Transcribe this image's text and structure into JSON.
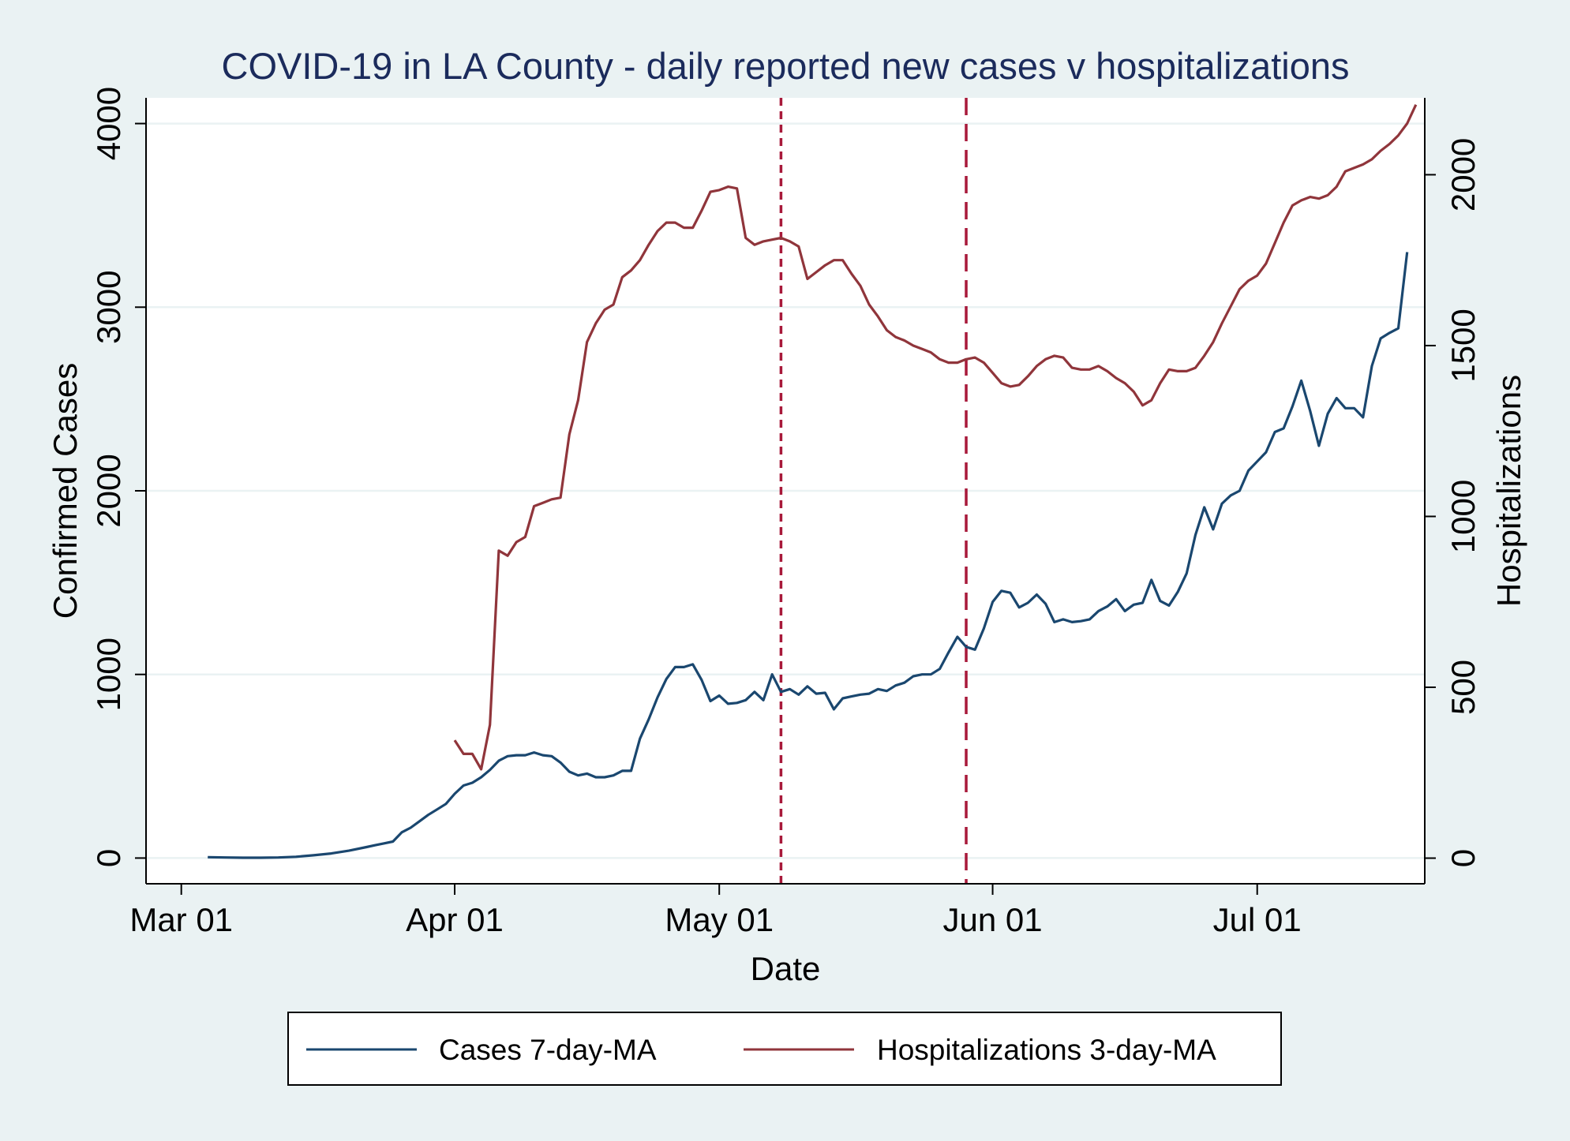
{
  "chart_data": {
    "type": "line",
    "title": "COVID-19 in LA County - daily reported new cases v hospitalizations",
    "xlabel": "Date",
    "ylabel": "Confirmed Cases",
    "y2label": "Hospitalizations",
    "x_ticks": [
      {
        "date": "2020-03-01",
        "label": "Mar 01"
      },
      {
        "date": "2020-04-01",
        "label": "Apr 01"
      },
      {
        "date": "2020-05-01",
        "label": "May 01"
      },
      {
        "date": "2020-06-01",
        "label": "Jun 01"
      },
      {
        "date": "2020-07-01",
        "label": "Jul 01"
      }
    ],
    "xlim": [
      "2020-02-26",
      "2020-07-20"
    ],
    "ylim": [
      -140,
      4140
    ],
    "y_ticks": [
      0,
      1000,
      2000,
      3000,
      4000
    ],
    "y2lim": [
      -75,
      2225
    ],
    "y2_ticks": [
      0,
      500,
      1000,
      1500,
      2000
    ],
    "grid": "horizontal",
    "legend_position": "bottom",
    "reference_lines": [
      {
        "date": "2020-05-08",
        "style": "dotted",
        "color": "#a8193a"
      },
      {
        "date": "2020-05-29",
        "style": "dashed",
        "color": "#a8193a"
      }
    ],
    "series": [
      {
        "name": "Cases 7-day-MA",
        "axis": "left",
        "color": "#1a476f",
        "points": [
          [
            "2020-03-04",
            5
          ],
          [
            "2020-03-06",
            3
          ],
          [
            "2020-03-08",
            2
          ],
          [
            "2020-03-10",
            2
          ],
          [
            "2020-03-12",
            3
          ],
          [
            "2020-03-14",
            7
          ],
          [
            "2020-03-16",
            15
          ],
          [
            "2020-03-18",
            25
          ],
          [
            "2020-03-20",
            40
          ],
          [
            "2020-03-22",
            60
          ],
          [
            "2020-03-23",
            70
          ],
          [
            "2020-03-24",
            80
          ],
          [
            "2020-03-25",
            90
          ],
          [
            "2020-03-26",
            140
          ],
          [
            "2020-03-27",
            165
          ],
          [
            "2020-03-28",
            200
          ],
          [
            "2020-03-29",
            235
          ],
          [
            "2020-03-30",
            265
          ],
          [
            "2020-03-31",
            295
          ],
          [
            "2020-04-01",
            350
          ],
          [
            "2020-04-02",
            395
          ],
          [
            "2020-04-03",
            410
          ],
          [
            "2020-04-04",
            440
          ],
          [
            "2020-04-05",
            480
          ],
          [
            "2020-04-06",
            530
          ],
          [
            "2020-04-07",
            555
          ],
          [
            "2020-04-08",
            560
          ],
          [
            "2020-04-09",
            560
          ],
          [
            "2020-04-10",
            575
          ],
          [
            "2020-04-11",
            560
          ],
          [
            "2020-04-12",
            555
          ],
          [
            "2020-04-13",
            520
          ],
          [
            "2020-04-14",
            470
          ],
          [
            "2020-04-15",
            450
          ],
          [
            "2020-04-16",
            460
          ],
          [
            "2020-04-17",
            440
          ],
          [
            "2020-04-18",
            440
          ],
          [
            "2020-04-19",
            450
          ],
          [
            "2020-04-20",
            475
          ],
          [
            "2020-04-21",
            475
          ],
          [
            "2020-04-22",
            650
          ],
          [
            "2020-04-23",
            755
          ],
          [
            "2020-04-24",
            875
          ],
          [
            "2020-04-25",
            975
          ],
          [
            "2020-04-26",
            1040
          ],
          [
            "2020-04-27",
            1040
          ],
          [
            "2020-04-28",
            1055
          ],
          [
            "2020-04-29",
            970
          ],
          [
            "2020-04-30",
            855
          ],
          [
            "2020-05-01",
            885
          ],
          [
            "2020-05-02",
            840
          ],
          [
            "2020-05-03",
            845
          ],
          [
            "2020-05-04",
            860
          ],
          [
            "2020-05-05",
            905
          ],
          [
            "2020-05-06",
            860
          ],
          [
            "2020-05-07",
            1000
          ],
          [
            "2020-05-08",
            905
          ],
          [
            "2020-05-09",
            920
          ],
          [
            "2020-05-10",
            890
          ],
          [
            "2020-05-11",
            935
          ],
          [
            "2020-05-12",
            895
          ],
          [
            "2020-05-13",
            900
          ],
          [
            "2020-05-14",
            810
          ],
          [
            "2020-05-15",
            870
          ],
          [
            "2020-05-16",
            880
          ],
          [
            "2020-05-17",
            890
          ],
          [
            "2020-05-18",
            895
          ],
          [
            "2020-05-19",
            920
          ],
          [
            "2020-05-20",
            910
          ],
          [
            "2020-05-21",
            940
          ],
          [
            "2020-05-22",
            955
          ],
          [
            "2020-05-23",
            990
          ],
          [
            "2020-05-24",
            1000
          ],
          [
            "2020-05-25",
            1000
          ],
          [
            "2020-05-26",
            1030
          ],
          [
            "2020-05-27",
            1120
          ],
          [
            "2020-05-28",
            1205
          ],
          [
            "2020-05-29",
            1150
          ],
          [
            "2020-05-30",
            1135
          ],
          [
            "2020-05-31",
            1250
          ],
          [
            "2020-06-01",
            1395
          ],
          [
            "2020-06-02",
            1455
          ],
          [
            "2020-06-03",
            1445
          ],
          [
            "2020-06-04",
            1365
          ],
          [
            "2020-06-05",
            1390
          ],
          [
            "2020-06-06",
            1435
          ],
          [
            "2020-06-07",
            1385
          ],
          [
            "2020-06-08",
            1285
          ],
          [
            "2020-06-09",
            1300
          ],
          [
            "2020-06-10",
            1285
          ],
          [
            "2020-06-11",
            1290
          ],
          [
            "2020-06-12",
            1300
          ],
          [
            "2020-06-13",
            1345
          ],
          [
            "2020-06-14",
            1370
          ],
          [
            "2020-06-15",
            1410
          ],
          [
            "2020-06-16",
            1345
          ],
          [
            "2020-06-17",
            1380
          ],
          [
            "2020-06-18",
            1390
          ],
          [
            "2020-06-19",
            1515
          ],
          [
            "2020-06-20",
            1400
          ],
          [
            "2020-06-21",
            1375
          ],
          [
            "2020-06-22",
            1450
          ],
          [
            "2020-06-23",
            1550
          ],
          [
            "2020-06-24",
            1760
          ],
          [
            "2020-06-25",
            1910
          ],
          [
            "2020-06-26",
            1790
          ],
          [
            "2020-06-27",
            1930
          ],
          [
            "2020-06-28",
            1975
          ],
          [
            "2020-06-29",
            2000
          ],
          [
            "2020-06-30",
            2110
          ],
          [
            "2020-07-01",
            2160
          ],
          [
            "2020-07-02",
            2210
          ],
          [
            "2020-07-03",
            2320
          ],
          [
            "2020-07-04",
            2340
          ],
          [
            "2020-07-05",
            2460
          ],
          [
            "2020-07-06",
            2600
          ],
          [
            "2020-07-07",
            2435
          ],
          [
            "2020-07-08",
            2245
          ],
          [
            "2020-07-09",
            2420
          ],
          [
            "2020-07-10",
            2505
          ],
          [
            "2020-07-11",
            2450
          ],
          [
            "2020-07-12",
            2450
          ],
          [
            "2020-07-13",
            2400
          ],
          [
            "2020-07-14",
            2680
          ],
          [
            "2020-07-15",
            2830
          ],
          [
            "2020-07-16",
            2860
          ],
          [
            "2020-07-17",
            2885
          ],
          [
            "2020-07-18",
            3300
          ]
        ]
      },
      {
        "name": "Hospitalizations 3-day-MA",
        "axis": "right",
        "color": "#90353b",
        "points": [
          [
            "2020-04-01",
            345
          ],
          [
            "2020-04-02",
            305
          ],
          [
            "2020-04-03",
            305
          ],
          [
            "2020-04-04",
            260
          ],
          [
            "2020-04-05",
            390
          ],
          [
            "2020-04-06",
            900
          ],
          [
            "2020-04-07",
            885
          ],
          [
            "2020-04-08",
            925
          ],
          [
            "2020-04-09",
            940
          ],
          [
            "2020-04-10",
            1030
          ],
          [
            "2020-04-11",
            1040
          ],
          [
            "2020-04-12",
            1050
          ],
          [
            "2020-04-13",
            1055
          ],
          [
            "2020-04-14",
            1240
          ],
          [
            "2020-04-15",
            1340
          ],
          [
            "2020-04-16",
            1510
          ],
          [
            "2020-04-17",
            1565
          ],
          [
            "2020-04-18",
            1605
          ],
          [
            "2020-04-19",
            1620
          ],
          [
            "2020-04-20",
            1700
          ],
          [
            "2020-04-21",
            1720
          ],
          [
            "2020-04-22",
            1750
          ],
          [
            "2020-04-23",
            1795
          ],
          [
            "2020-04-24",
            1835
          ],
          [
            "2020-04-25",
            1860
          ],
          [
            "2020-04-26",
            1860
          ],
          [
            "2020-04-27",
            1845
          ],
          [
            "2020-04-28",
            1845
          ],
          [
            "2020-04-29",
            1895
          ],
          [
            "2020-04-30",
            1950
          ],
          [
            "2020-05-01",
            1955
          ],
          [
            "2020-05-02",
            1965
          ],
          [
            "2020-05-03",
            1960
          ],
          [
            "2020-05-04",
            1815
          ],
          [
            "2020-05-05",
            1795
          ],
          [
            "2020-05-06",
            1805
          ],
          [
            "2020-05-07",
            1810
          ],
          [
            "2020-05-08",
            1815
          ],
          [
            "2020-05-09",
            1805
          ],
          [
            "2020-05-10",
            1790
          ],
          [
            "2020-05-11",
            1695
          ],
          [
            "2020-05-12",
            1715
          ],
          [
            "2020-05-13",
            1735
          ],
          [
            "2020-05-14",
            1750
          ],
          [
            "2020-05-15",
            1750
          ],
          [
            "2020-05-16",
            1710
          ],
          [
            "2020-05-17",
            1675
          ],
          [
            "2020-05-18",
            1620
          ],
          [
            "2020-05-19",
            1585
          ],
          [
            "2020-05-20",
            1545
          ],
          [
            "2020-05-21",
            1525
          ],
          [
            "2020-05-22",
            1515
          ],
          [
            "2020-05-23",
            1500
          ],
          [
            "2020-05-24",
            1490
          ],
          [
            "2020-05-25",
            1480
          ],
          [
            "2020-05-26",
            1460
          ],
          [
            "2020-05-27",
            1450
          ],
          [
            "2020-05-28",
            1450
          ],
          [
            "2020-05-29",
            1460
          ],
          [
            "2020-05-30",
            1465
          ],
          [
            "2020-05-31",
            1450
          ],
          [
            "2020-06-01",
            1420
          ],
          [
            "2020-06-02",
            1390
          ],
          [
            "2020-06-03",
            1380
          ],
          [
            "2020-06-04",
            1385
          ],
          [
            "2020-06-05",
            1410
          ],
          [
            "2020-06-06",
            1440
          ],
          [
            "2020-06-07",
            1460
          ],
          [
            "2020-06-08",
            1470
          ],
          [
            "2020-06-09",
            1465
          ],
          [
            "2020-06-10",
            1435
          ],
          [
            "2020-06-11",
            1430
          ],
          [
            "2020-06-12",
            1430
          ],
          [
            "2020-06-13",
            1440
          ],
          [
            "2020-06-14",
            1425
          ],
          [
            "2020-06-15",
            1405
          ],
          [
            "2020-06-16",
            1390
          ],
          [
            "2020-06-17",
            1365
          ],
          [
            "2020-06-18",
            1325
          ],
          [
            "2020-06-19",
            1340
          ],
          [
            "2020-06-20",
            1390
          ],
          [
            "2020-06-21",
            1430
          ],
          [
            "2020-06-22",
            1425
          ],
          [
            "2020-06-23",
            1425
          ],
          [
            "2020-06-24",
            1435
          ],
          [
            "2020-06-25",
            1470
          ],
          [
            "2020-06-26",
            1510
          ],
          [
            "2020-06-27",
            1565
          ],
          [
            "2020-06-28",
            1615
          ],
          [
            "2020-06-29",
            1665
          ],
          [
            "2020-06-30",
            1690
          ],
          [
            "2020-07-01",
            1705
          ],
          [
            "2020-07-02",
            1740
          ],
          [
            "2020-07-03",
            1800
          ],
          [
            "2020-07-04",
            1860
          ],
          [
            "2020-07-05",
            1910
          ],
          [
            "2020-07-06",
            1925
          ],
          [
            "2020-07-07",
            1935
          ],
          [
            "2020-07-08",
            1930
          ],
          [
            "2020-07-09",
            1940
          ],
          [
            "2020-07-10",
            1965
          ],
          [
            "2020-07-11",
            2010
          ],
          [
            "2020-07-12",
            2020
          ],
          [
            "2020-07-13",
            2030
          ],
          [
            "2020-07-14",
            2045
          ],
          [
            "2020-07-15",
            2070
          ],
          [
            "2020-07-16",
            2090
          ],
          [
            "2020-07-17",
            2115
          ],
          [
            "2020-07-18",
            2150
          ],
          [
            "2020-07-19",
            2205
          ]
        ]
      }
    ]
  }
}
